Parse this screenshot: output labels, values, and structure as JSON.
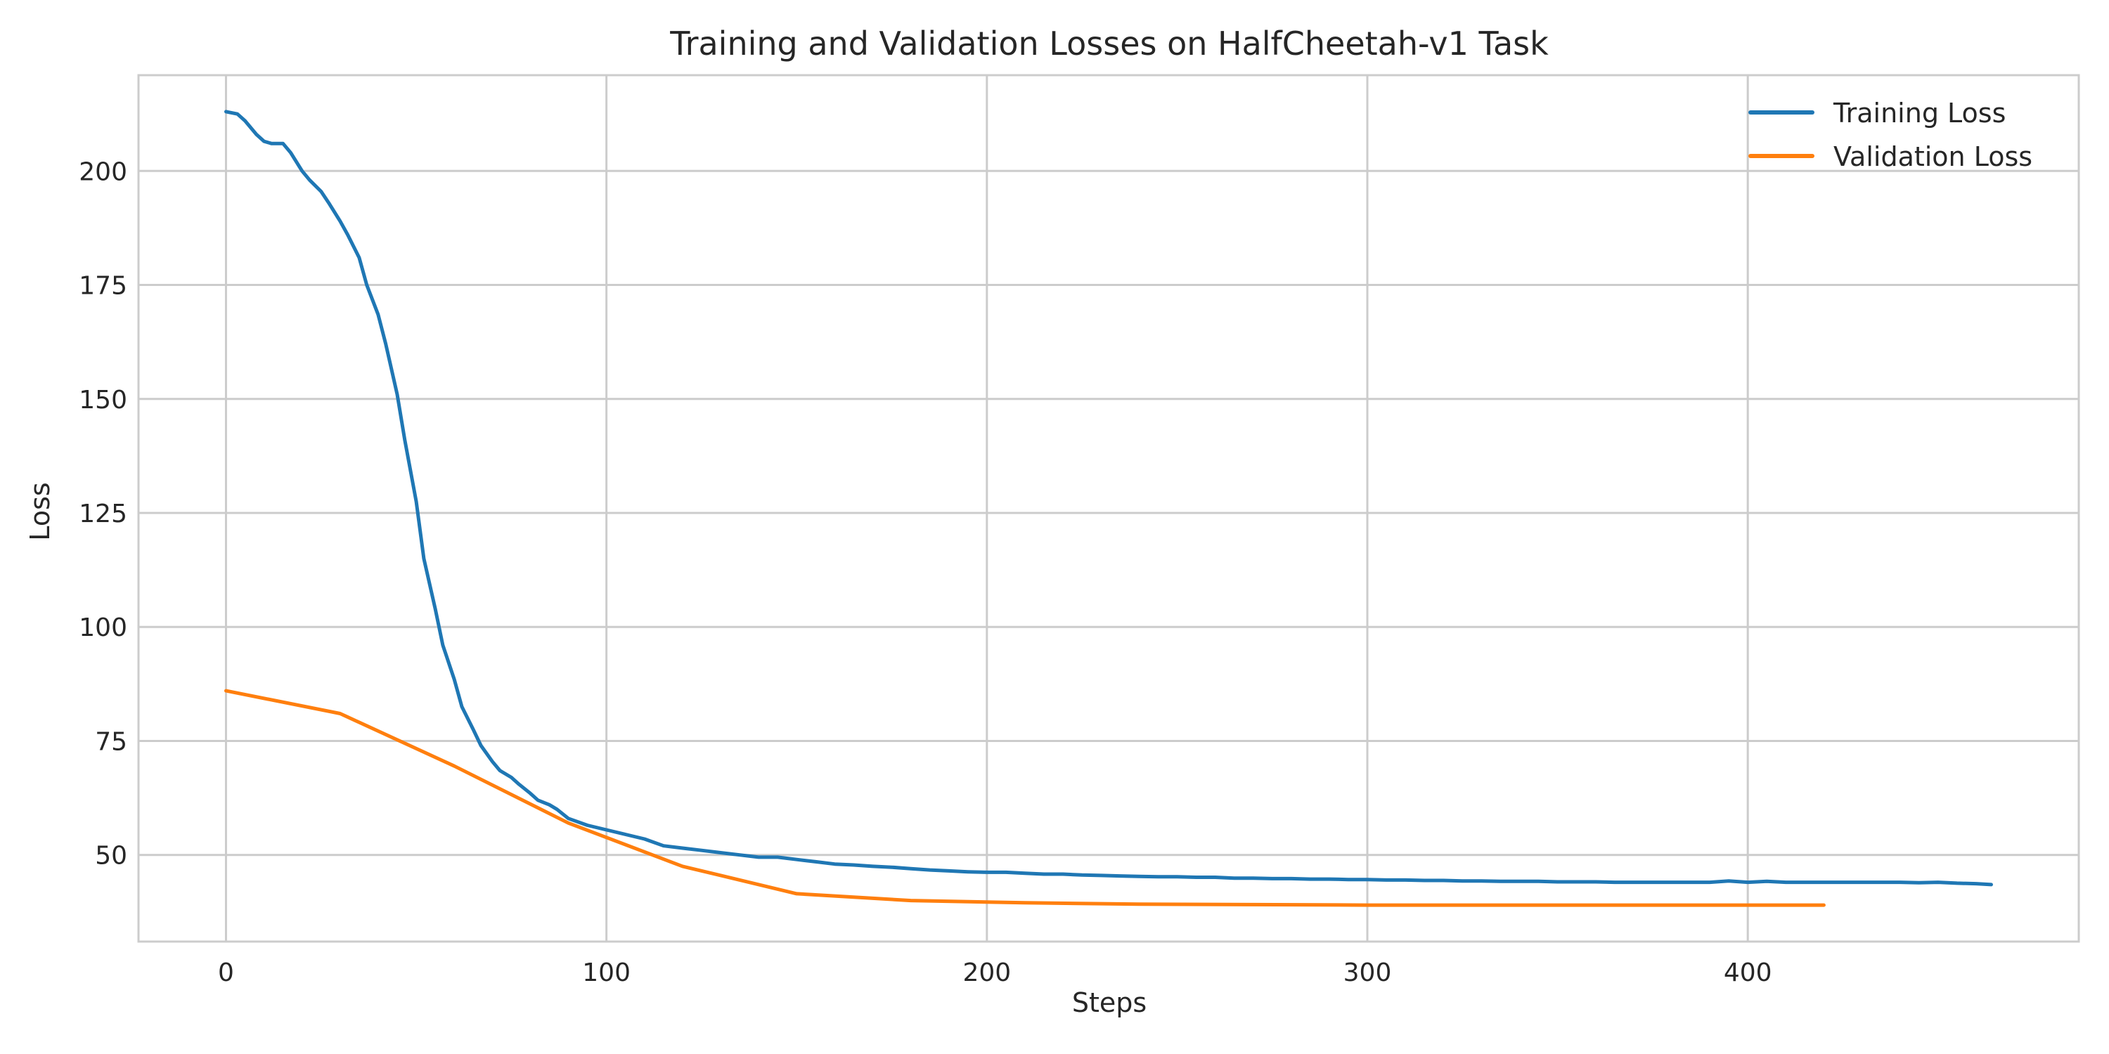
{
  "chart_data": {
    "type": "line",
    "title": "Training and Validation Losses on HalfCheetah-v1 Task",
    "xlabel": "Steps",
    "ylabel": "Loss",
    "xlim": [
      -23,
      487
    ],
    "ylim": [
      31,
      221
    ],
    "x_ticks": [
      0,
      100,
      200,
      300,
      400
    ],
    "y_ticks": [
      50,
      75,
      100,
      125,
      150,
      175,
      200
    ],
    "grid": true,
    "legend_position": "top-right",
    "series": [
      {
        "name": "Training Loss",
        "color": "#1f77b4",
        "x": [
          0,
          3,
          5,
          8,
          10,
          12,
          15,
          17,
          20,
          22,
          25,
          27,
          30,
          32,
          35,
          37,
          40,
          42,
          45,
          47,
          50,
          52,
          55,
          57,
          60,
          62,
          65,
          67,
          70,
          72,
          75,
          77,
          80,
          82,
          85,
          87,
          90,
          95,
          100,
          105,
          110,
          115,
          120,
          125,
          130,
          135,
          140,
          145,
          150,
          155,
          160,
          165,
          170,
          175,
          180,
          185,
          190,
          195,
          200,
          205,
          210,
          215,
          220,
          225,
          230,
          235,
          240,
          245,
          250,
          255,
          260,
          265,
          270,
          275,
          280,
          285,
          290,
          295,
          300,
          305,
          310,
          315,
          320,
          325,
          330,
          335,
          340,
          345,
          350,
          355,
          360,
          365,
          370,
          375,
          380,
          385,
          390,
          395,
          400,
          405,
          410,
          415,
          420,
          425,
          430,
          435,
          440,
          445,
          450,
          455,
          460,
          464
        ],
        "values": [
          213,
          212.5,
          211,
          208,
          206.5,
          206,
          206,
          204,
          200,
          198,
          195.5,
          193,
          189,
          186,
          181,
          175,
          168.5,
          162,
          151,
          141,
          127.5,
          115,
          104,
          96,
          88.5,
          82.5,
          77.5,
          74,
          70.5,
          68.5,
          67,
          65.5,
          63.5,
          62,
          61,
          60,
          58,
          56.5,
          55.5,
          54.5,
          53.5,
          52,
          51.5,
          51,
          50.5,
          50,
          49.5,
          49.5,
          49,
          48.5,
          48,
          47.8,
          47.5,
          47.3,
          47,
          46.7,
          46.5,
          46.3,
          46.2,
          46.2,
          46,
          45.8,
          45.8,
          45.6,
          45.5,
          45.4,
          45.3,
          45.2,
          45.2,
          45.1,
          45.1,
          44.9,
          44.9,
          44.8,
          44.8,
          44.7,
          44.7,
          44.6,
          44.6,
          44.5,
          44.5,
          44.4,
          44.4,
          44.3,
          44.3,
          44.2,
          44.2,
          44.2,
          44.1,
          44.1,
          44.1,
          44,
          44,
          44,
          44,
          44,
          44,
          44.3,
          44,
          44.2,
          44,
          44,
          44,
          44,
          44,
          44,
          44,
          43.9,
          44,
          43.8,
          43.7,
          43.5
        ]
      },
      {
        "name": "Validation Loss",
        "color": "#ff7f0e",
        "x": [
          0,
          30,
          60,
          90,
          120,
          150,
          180,
          210,
          240,
          270,
          300,
          330,
          360,
          390,
          420
        ],
        "values": [
          86,
          81,
          69.5,
          57,
          47.5,
          41.5,
          40,
          39.5,
          39.2,
          39.1,
          39,
          39,
          39,
          39,
          39
        ]
      }
    ]
  }
}
